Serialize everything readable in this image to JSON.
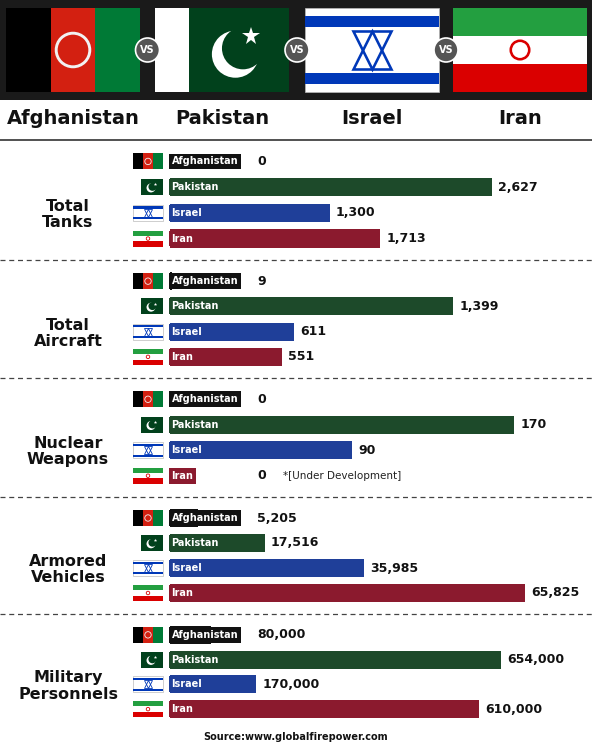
{
  "header": {
    "countries": [
      "Afghanistan",
      "Pakistan",
      "Israel",
      "Iran"
    ],
    "separator": "VS"
  },
  "chart_data": [
    {
      "type": "bar",
      "orientation": "horizontal",
      "title": "Total Tanks",
      "categories": [
        "Afghanistan",
        "Pakistan",
        "Israel",
        "Iran"
      ],
      "values": [
        0,
        2627,
        1300,
        1713
      ],
      "value_labels": [
        "0",
        "2,627",
        "1,300",
        "1,713"
      ],
      "colors": [
        "#111111",
        "#1d4a2a",
        "#1f3f99",
        "#8b1a2e"
      ],
      "xlim": [
        0,
        3300
      ],
      "tick_labels": false,
      "data_labels": true
    },
    {
      "type": "bar",
      "orientation": "horizontal",
      "title": "Total Aircraft",
      "categories": [
        "Afghanistan",
        "Pakistan",
        "Israel",
        "Iran"
      ],
      "values": [
        9,
        1399,
        611,
        551
      ],
      "value_labels": [
        "9",
        "1,399",
        "611",
        "551"
      ],
      "colors": [
        "#111111",
        "#1d4a2a",
        "#1f3f99",
        "#8b1a2e"
      ],
      "xlim": [
        0,
        2000
      ],
      "tick_labels": false,
      "data_labels": true
    },
    {
      "type": "bar",
      "orientation": "horizontal",
      "title": "Nuclear Weapons",
      "categories": [
        "Afghanistan",
        "Pakistan",
        "Israel",
        "Iran"
      ],
      "values": [
        0,
        170,
        90,
        0
      ],
      "value_labels": [
        "0",
        "170",
        "90",
        "0"
      ],
      "colors": [
        "#111111",
        "#1d4a2a",
        "#1f3f99",
        "#8b1a2e"
      ],
      "xlim": [
        0,
        200
      ],
      "tick_labels": false,
      "data_labels": true,
      "annotations": [
        {
          "category": "Iran",
          "text": "*[Under Development]"
        }
      ]
    },
    {
      "type": "bar",
      "orientation": "horizontal",
      "title": "Armored Vehicles",
      "categories": [
        "Afghanistan",
        "Pakistan",
        "Israel",
        "Iran"
      ],
      "values": [
        5205,
        17516,
        35985,
        65825
      ],
      "value_labels": [
        "5,205",
        "17,516",
        "35,985",
        "65,825"
      ],
      "colors": [
        "#111111",
        "#1d4a2a",
        "#1f3f99",
        "#8b1a2e"
      ],
      "xlim": [
        0,
        75000
      ],
      "tick_labels": false,
      "data_labels": true
    },
    {
      "type": "bar",
      "orientation": "horizontal",
      "title": "Military Personnels",
      "categories": [
        "Afghanistan",
        "Pakistan",
        "Israel",
        "Iran"
      ],
      "values": [
        80000,
        654000,
        170000,
        610000
      ],
      "value_labels": [
        "80,000",
        "654,000",
        "170,000",
        "610,000"
      ],
      "colors": [
        "#111111",
        "#1d4a2a",
        "#1f3f99",
        "#8b1a2e"
      ],
      "xlim": [
        0,
        800000
      ],
      "tick_labels": false,
      "data_labels": true
    }
  ],
  "source": "Source:www.globalfirepower.com"
}
